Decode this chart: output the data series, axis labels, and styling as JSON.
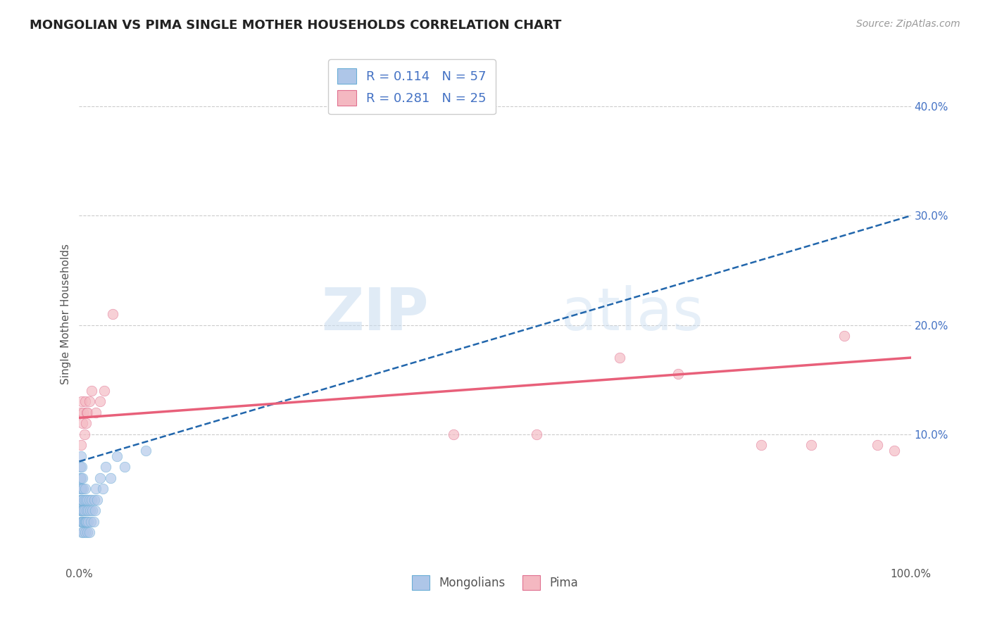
{
  "title": "MONGOLIAN VS PIMA SINGLE MOTHER HOUSEHOLDS CORRELATION CHART",
  "source": "Source: ZipAtlas.com",
  "ylabel": "Single Mother Households",
  "xlim": [
    0.0,
    1.0
  ],
  "ylim": [
    -0.02,
    0.44
  ],
  "xticks": [
    0.0,
    0.25,
    0.5,
    0.75,
    1.0
  ],
  "xtick_labels": [
    "0.0%",
    "",
    "",
    "",
    "100.0%"
  ],
  "yticks_right": [
    0.1,
    0.2,
    0.3,
    0.4
  ],
  "ytick_labels_right": [
    "10.0%",
    "20.0%",
    "30.0%",
    "40.0%"
  ],
  "grid_yticks": [
    0.1,
    0.2,
    0.3,
    0.4
  ],
  "mongolian_color": "#aec6e8",
  "pima_color": "#f4b8c1",
  "mongolian_line_color": "#2166ac",
  "pima_line_color": "#e8607a",
  "mongolian_scatter_edge": "#6baed6",
  "pima_scatter_edge": "#e07090",
  "R_mongolian": 0.114,
  "N_mongolian": 57,
  "R_pima": 0.281,
  "N_pima": 25,
  "watermark_zip": "ZIP",
  "watermark_atlas": "atlas",
  "grid_color": "#cccccc",
  "background_color": "#ffffff",
  "mongolian_x": [
    0.001,
    0.001,
    0.001,
    0.001,
    0.001,
    0.002,
    0.002,
    0.002,
    0.002,
    0.002,
    0.002,
    0.003,
    0.003,
    0.003,
    0.003,
    0.003,
    0.003,
    0.004,
    0.004,
    0.004,
    0.004,
    0.005,
    0.005,
    0.005,
    0.005,
    0.006,
    0.006,
    0.006,
    0.007,
    0.007,
    0.007,
    0.008,
    0.008,
    0.009,
    0.009,
    0.01,
    0.01,
    0.011,
    0.011,
    0.012,
    0.012,
    0.013,
    0.014,
    0.015,
    0.016,
    0.017,
    0.018,
    0.019,
    0.02,
    0.022,
    0.025,
    0.028,
    0.032,
    0.038,
    0.045,
    0.055,
    0.08
  ],
  "mongolian_y": [
    0.03,
    0.04,
    0.05,
    0.06,
    0.07,
    0.02,
    0.03,
    0.04,
    0.05,
    0.06,
    0.08,
    0.01,
    0.02,
    0.03,
    0.04,
    0.05,
    0.07,
    0.02,
    0.03,
    0.04,
    0.06,
    0.01,
    0.02,
    0.03,
    0.05,
    0.02,
    0.03,
    0.04,
    0.01,
    0.02,
    0.05,
    0.02,
    0.04,
    0.02,
    0.03,
    0.01,
    0.04,
    0.02,
    0.03,
    0.01,
    0.04,
    0.03,
    0.02,
    0.04,
    0.03,
    0.02,
    0.04,
    0.03,
    0.05,
    0.04,
    0.06,
    0.05,
    0.07,
    0.06,
    0.08,
    0.07,
    0.085
  ],
  "pima_x": [
    0.001,
    0.002,
    0.003,
    0.004,
    0.005,
    0.006,
    0.007,
    0.008,
    0.009,
    0.01,
    0.012,
    0.015,
    0.02,
    0.025,
    0.03,
    0.04,
    0.45,
    0.55,
    0.65,
    0.72,
    0.82,
    0.88,
    0.92,
    0.96,
    0.98
  ],
  "pima_y": [
    0.12,
    0.09,
    0.13,
    0.11,
    0.12,
    0.1,
    0.13,
    0.11,
    0.12,
    0.12,
    0.13,
    0.14,
    0.12,
    0.13,
    0.14,
    0.21,
    0.1,
    0.1,
    0.17,
    0.155,
    0.09,
    0.09,
    0.19,
    0.09,
    0.085
  ]
}
